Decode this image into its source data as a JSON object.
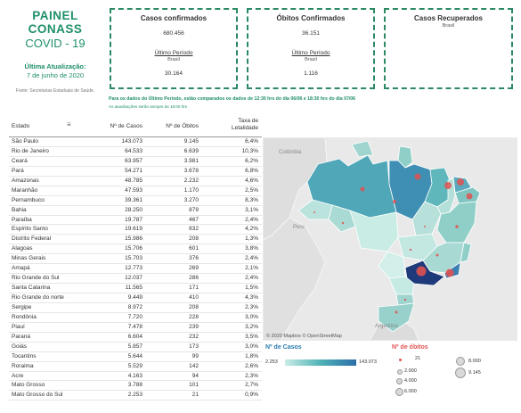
{
  "header": {
    "title": "PAINEL CONASS",
    "subtitle": "COVID - 19",
    "updated_label": "Última Atualização:",
    "updated_date": "7 de junho de 2020",
    "source": "Fonte: Secretarias Estaduais de Saúde."
  },
  "cards": {
    "confirmed": {
      "title": "Casos confirmados",
      "value": "680.456",
      "period_label": "Último Período",
      "scope": "Brasil",
      "period_value": "30.164"
    },
    "deaths": {
      "title": "Óbitos Confirmados",
      "value": "36.151",
      "period_label": "Último Período",
      "scope": "Brasil",
      "period_value": "1.116"
    },
    "recovered": {
      "title": "Casos Recuperados",
      "scope": "Brasil"
    }
  },
  "notice": {
    "line1": "Para os dados do Último Período, estão comparados os dados de 12:30 hrs do dia 06/06 e 18:30 hrs do dia 07/06",
    "line2": "As atualizações serão sempre às 18:00 hrs"
  },
  "table": {
    "columns": {
      "state": "Estado",
      "cases": "Nº de Casos",
      "deaths": "Nº de Óbitos",
      "rate": "Taxa de Letalidade"
    },
    "rows": [
      [
        "São Paulo",
        "143.073",
        "9.145",
        "6,4%"
      ],
      [
        "Rio de Janeiro",
        "64.533",
        "6.639",
        "10,3%"
      ],
      [
        "Ceará",
        "63.957",
        "3.981",
        "6,2%"
      ],
      [
        "Pará",
        "54.271",
        "3.678",
        "6,8%"
      ],
      [
        "Amazonas",
        "48.785",
        "2.232",
        "4,6%"
      ],
      [
        "Maranhão",
        "47.593",
        "1.170",
        "2,5%"
      ],
      [
        "Pernambuco",
        "39.361",
        "3.270",
        "8,3%"
      ],
      [
        "Bahia",
        "28.250",
        "879",
        "3,1%"
      ],
      [
        "Paraíba",
        "19.787",
        "467",
        "2,4%"
      ],
      [
        "Espírito Santo",
        "19.619",
        "832",
        "4,2%"
      ],
      [
        "Distrito Federal",
        "15.986",
        "208",
        "1,3%"
      ],
      [
        "Alagoas",
        "15.706",
        "601",
        "3,8%"
      ],
      [
        "Minas Gerais",
        "15.703",
        "376",
        "2,4%"
      ],
      [
        "Amapá",
        "12.773",
        "269",
        "2,1%"
      ],
      [
        "Rio Grande do Sul",
        "12.037",
        "286",
        "2,4%"
      ],
      [
        "Santa Catarina",
        "11.565",
        "171",
        "1,5%"
      ],
      [
        "Rio Grande do norte",
        "9.449",
        "410",
        "4,3%"
      ],
      [
        "Sergipe",
        "8.972",
        "208",
        "2,3%"
      ],
      [
        "Rondônia",
        "7.720",
        "228",
        "3,0%"
      ],
      [
        "Piauí",
        "7.478",
        "239",
        "3,2%"
      ],
      [
        "Paraná",
        "6.604",
        "232",
        "3,5%"
      ],
      [
        "Goiás",
        "5.857",
        "173",
        "3,0%"
      ],
      [
        "Tocantins",
        "5.644",
        "99",
        "1,8%"
      ],
      [
        "Roraima",
        "5.529",
        "142",
        "2,6%"
      ],
      [
        "Acre",
        "4.163",
        "94",
        "2,3%"
      ],
      [
        "Mato Grosso",
        "3.788",
        "101",
        "2,7%"
      ],
      [
        "Mato Grosso do Sul",
        "2.253",
        "21",
        "0,9%"
      ]
    ]
  },
  "map": {
    "labels": {
      "colombia": "Colômbia",
      "peru": "Peru",
      "argentina": "Argentina"
    },
    "attribution": "© 2020 Mapbox © OpenStreetMap",
    "colors": {
      "low": "#c9ece5",
      "mid": "#4fb2b6",
      "high": "#2a6ea8",
      "max": "#1f3a7a",
      "bubble": "#e05252"
    }
  },
  "legend": {
    "cases_title": "Nº de Casos",
    "cases_min": "2.253",
    "cases_max": "143.073",
    "deaths_title": "Nº de óbitos",
    "deaths_sizes": [
      "21",
      "2.000",
      "4.000",
      "6.000",
      "8.000",
      "9.145"
    ]
  }
}
